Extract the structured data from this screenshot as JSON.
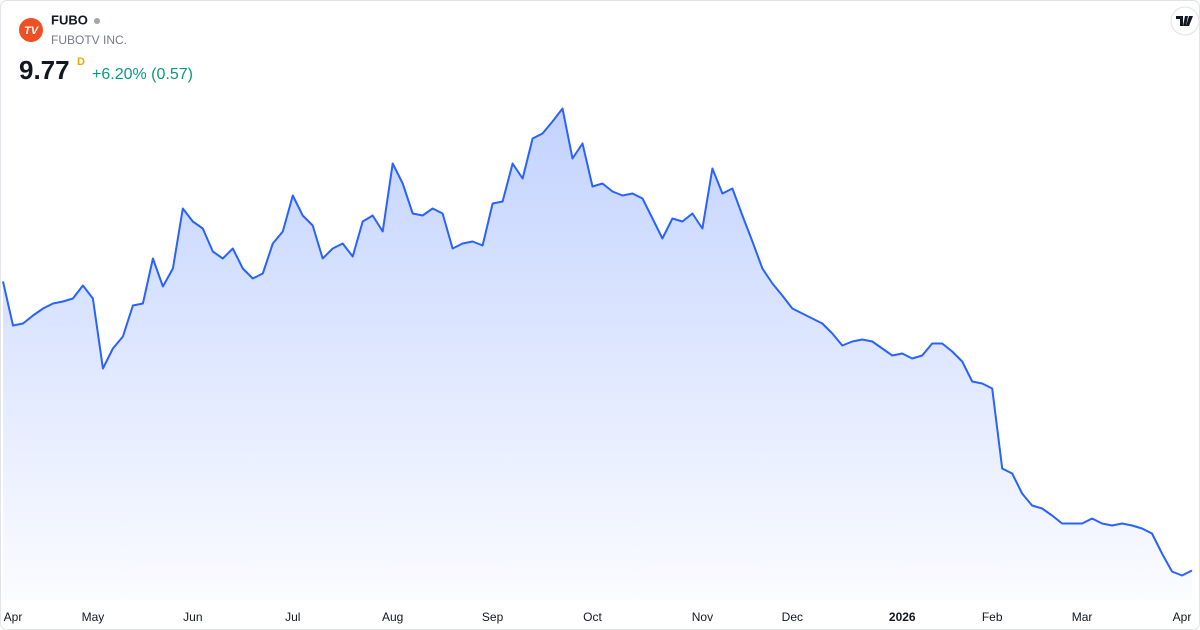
{
  "header": {
    "logo": "TV",
    "symbol": "FUBO",
    "name": "FUBOTV INC.",
    "price": "9.77",
    "interval": "D",
    "change": "+6.20% (0.57)"
  },
  "chart_data": {
    "type": "area",
    "color": "#2962ff",
    "categories": [
      null,
      "Apr",
      null,
      null,
      null,
      null,
      null,
      null,
      null,
      "May",
      null,
      null,
      null,
      null,
      null,
      null,
      null,
      null,
      null,
      "Jun",
      null,
      null,
      null,
      null,
      null,
      null,
      null,
      null,
      null,
      "Jul",
      null,
      null,
      null,
      null,
      null,
      null,
      null,
      null,
      null,
      "Aug",
      null,
      null,
      null,
      null,
      null,
      null,
      null,
      null,
      null,
      "Sep",
      null,
      null,
      null,
      null,
      null,
      null,
      null,
      null,
      null,
      "Oct",
      null,
      null,
      null,
      null,
      null,
      null,
      null,
      null,
      null,
      null,
      "Nov",
      null,
      null,
      null,
      null,
      null,
      null,
      null,
      null,
      "Dec",
      null,
      null,
      null,
      null,
      null,
      null,
      null,
      null,
      null,
      null,
      "2026",
      null,
      null,
      null,
      null,
      null,
      null,
      null,
      null,
      "Feb",
      null,
      null,
      null,
      null,
      null,
      null,
      null,
      null,
      "Mar",
      null,
      null,
      null,
      null,
      null,
      null,
      null,
      null,
      null,
      "Apr",
      null
    ],
    "values": [
      27.11,
      24.47,
      24.59,
      25.07,
      25.49,
      25.79,
      25.91,
      26.09,
      26.87,
      26.09,
      21.89,
      23.09,
      23.81,
      25.67,
      25.79,
      28.49,
      26.81,
      27.89,
      31.49,
      30.71,
      30.29,
      28.91,
      28.49,
      29.09,
      27.89,
      27.29,
      27.59,
      29.39,
      30.11,
      32.27,
      31.07,
      30.47,
      28.49,
      29.09,
      29.39,
      28.61,
      30.71,
      31.07,
      30.11,
      34.19,
      32.99,
      31.19,
      31.07,
      31.49,
      31.19,
      29.09,
      29.39,
      29.51,
      29.27,
      31.79,
      31.91,
      34.19,
      33.29,
      35.69,
      35.99,
      36.71,
      37.49,
      34.49,
      35.39,
      32.81,
      32.99,
      32.51,
      32.27,
      32.39,
      32.09,
      30.89,
      29.69,
      30.89,
      30.71,
      31.19,
      30.29,
      33.89,
      32.39,
      32.69,
      31.07,
      29.51,
      27.89,
      26.99,
      26.27,
      25.49,
      25.19,
      24.89,
      24.59,
      23.99,
      23.27,
      23.51,
      23.63,
      23.51,
      23.09,
      22.67,
      22.79,
      22.49,
      22.67,
      23.39,
      23.39,
      22.91,
      22.31,
      21.11,
      20.99,
      20.69,
      15.89,
      15.59,
      14.39,
      13.67,
      13.49,
      13.07,
      12.59,
      12.59,
      12.59,
      12.89,
      12.59,
      12.47,
      12.59,
      12.47,
      12.29,
      11.99,
      10.79,
      9.71,
      9.47,
      9.77
    ],
    "ylim": [
      8,
      44
    ]
  }
}
